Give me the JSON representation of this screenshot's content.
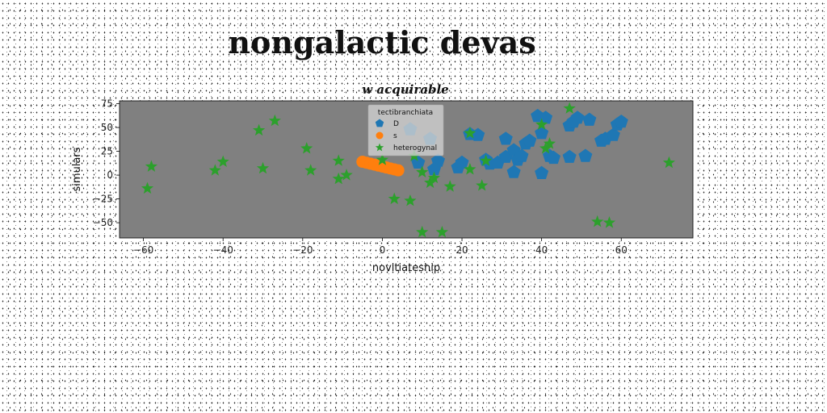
{
  "title": "nongalactic devas",
  "chart_data": {
    "type": "scatter",
    "subtitle": "w acquirable",
    "xlabel": "novitiateship",
    "ylabel": "simulars",
    "xlim": [
      -66,
      78
    ],
    "ylim": [
      -66,
      78
    ],
    "xticks": [
      -60,
      -40,
      -20,
      0,
      20,
      40,
      60
    ],
    "yticks": [
      -50,
      -25,
      0,
      25,
      50,
      75
    ],
    "xtick_labels": [
      "−60",
      "−40",
      "−20",
      "0",
      "20",
      "40",
      "60"
    ],
    "ytick_labels": [
      "−50",
      "−25",
      "0",
      "25",
      "50",
      "75"
    ],
    "background": "#808080",
    "grid": false,
    "legend": {
      "title": "tectibranchiata",
      "position": "top-center"
    },
    "series": [
      {
        "name": "D",
        "marker": "pentagon",
        "color": "#1f77b4",
        "points": [
          [
            7,
            48
          ],
          [
            12,
            38
          ],
          [
            9,
            13
          ],
          [
            14,
            15
          ],
          [
            13,
            6
          ],
          [
            19,
            8
          ],
          [
            20,
            13
          ],
          [
            22,
            43
          ],
          [
            24,
            42
          ],
          [
            26,
            16
          ],
          [
            27,
            12
          ],
          [
            29,
            13
          ],
          [
            31,
            38
          ],
          [
            31,
            19
          ],
          [
            33,
            26
          ],
          [
            33,
            3
          ],
          [
            34,
            16
          ],
          [
            35,
            20
          ],
          [
            36,
            33
          ],
          [
            37,
            36
          ],
          [
            39,
            62
          ],
          [
            40,
            44
          ],
          [
            40,
            2
          ],
          [
            41,
            60
          ],
          [
            42,
            20
          ],
          [
            43,
            18
          ],
          [
            47,
            19
          ],
          [
            47,
            52
          ],
          [
            48,
            56
          ],
          [
            49,
            60
          ],
          [
            51,
            20
          ],
          [
            52,
            58
          ],
          [
            55,
            36
          ],
          [
            56,
            38
          ],
          [
            58,
            42
          ],
          [
            59,
            53
          ],
          [
            60,
            56
          ]
        ]
      },
      {
        "name": "s",
        "marker": "circle",
        "color": "#ff7f0e",
        "points": [
          [
            -5,
            14
          ],
          [
            -4,
            13
          ],
          [
            -3,
            12
          ],
          [
            -2,
            11
          ],
          [
            -1,
            10
          ],
          [
            0,
            9
          ],
          [
            1,
            8
          ],
          [
            2,
            7
          ],
          [
            3,
            6
          ],
          [
            4,
            5
          ]
        ]
      },
      {
        "name": "heterogynal",
        "marker": "star",
        "color": "#2ca02c",
        "points": [
          [
            -59,
            -14
          ],
          [
            -58,
            9
          ],
          [
            -42,
            5
          ],
          [
            -40,
            14
          ],
          [
            -31,
            47
          ],
          [
            -30,
            7
          ],
          [
            -27,
            57
          ],
          [
            -19,
            28
          ],
          [
            -18,
            5
          ],
          [
            -11,
            -4
          ],
          [
            -11,
            15
          ],
          [
            -9,
            0
          ],
          [
            0,
            16
          ],
          [
            3,
            -25
          ],
          [
            7,
            -27
          ],
          [
            8,
            20
          ],
          [
            10,
            -60
          ],
          [
            10,
            3
          ],
          [
            12,
            -8
          ],
          [
            13,
            -3
          ],
          [
            15,
            -60
          ],
          [
            17,
            -12
          ],
          [
            22,
            6
          ],
          [
            22,
            44
          ],
          [
            25,
            -11
          ],
          [
            26,
            15
          ],
          [
            40,
            53
          ],
          [
            41,
            28
          ],
          [
            42,
            33
          ],
          [
            47,
            70
          ],
          [
            54,
            -49
          ],
          [
            57,
            -50
          ],
          [
            72,
            13
          ]
        ]
      }
    ]
  }
}
